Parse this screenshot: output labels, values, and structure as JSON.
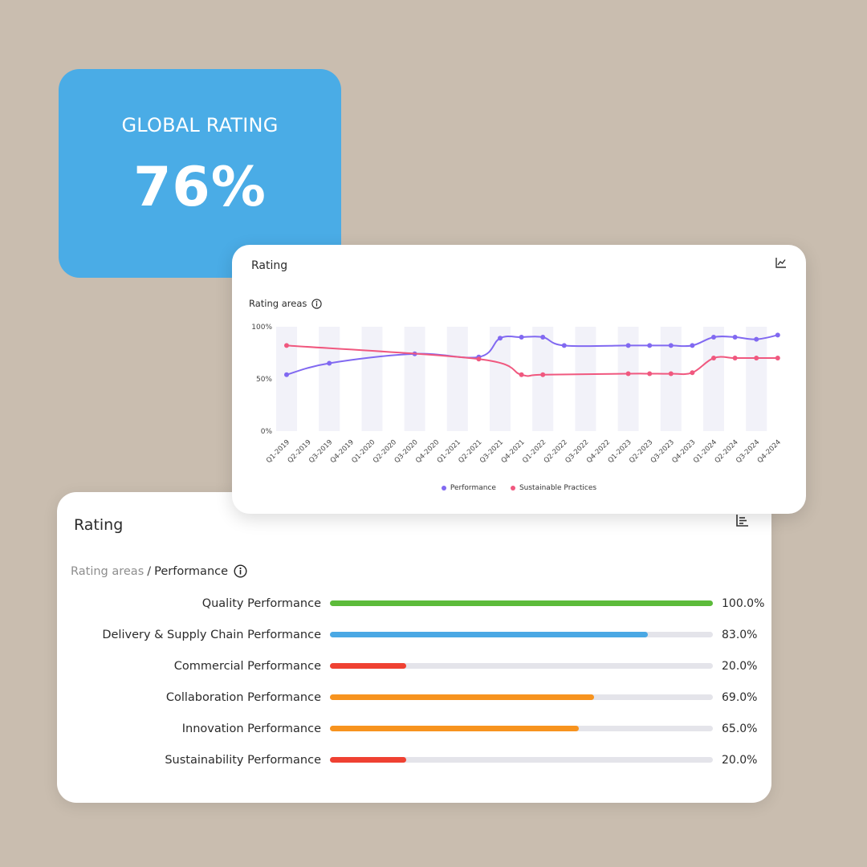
{
  "global": {
    "title": "GLOBAL RATING",
    "value": "76%"
  },
  "line_card": {
    "title": "Rating",
    "subtitle": "Rating areas",
    "tool_icon": "line-chart-icon",
    "info_icon": "info-icon"
  },
  "bars_card": {
    "title": "Rating",
    "tool_icon": "bar-list-icon",
    "breadcrumb": {
      "root": "Rating areas",
      "separator": "/",
      "leaf": "Performance"
    },
    "track_color": "#e4e4ea",
    "rows": [
      {
        "label": "Quality Performance",
        "value": 100.0,
        "display": "100.0%",
        "color": "#5cbb3a"
      },
      {
        "label": "Delivery & Supply Chain Performance",
        "value": 83.0,
        "display": "83.0%",
        "color": "#4aa8e4"
      },
      {
        "label": "Commercial Performance",
        "value": 20.0,
        "display": "20.0%",
        "color": "#ef4132"
      },
      {
        "label": "Collaboration Performance",
        "value": 69.0,
        "display": "69.0%",
        "color": "#f7931e"
      },
      {
        "label": "Innovation Performance",
        "value": 65.0,
        "display": "65.0%",
        "color": "#f7931e"
      },
      {
        "label": "Sustainability Performance",
        "value": 20.0,
        "display": "20.0%",
        "color": "#ef4132"
      }
    ]
  },
  "chart_data": {
    "type": "line",
    "title": "",
    "xlabel": "",
    "ylabel": "",
    "ylim": [
      0,
      100
    ],
    "yticks": [
      "0%",
      "50%",
      "100%"
    ],
    "ytick_values": [
      0,
      50,
      100
    ],
    "grid": "alternating vertical bands",
    "band_color": "#f2f2f9",
    "legend_position": "bottom-center",
    "x": [
      "Q1-2019",
      "Q2-2019",
      "Q3-2019",
      "Q4-2019",
      "Q1-2020",
      "Q2-2020",
      "Q3-2020",
      "Q4-2020",
      "Q1-2021",
      "Q2-2021",
      "Q3-2021",
      "Q4-2021",
      "Q1-2022",
      "Q2-2022",
      "Q3-2022",
      "Q4-2022",
      "Q1-2023",
      "Q2-2023",
      "Q3-2023",
      "Q4-2023",
      "Q1-2024",
      "Q2-2024",
      "Q3-2024",
      "Q4-2024"
    ],
    "series": [
      {
        "name": "Performance",
        "color": "#8169f1",
        "values": [
          54,
          null,
          65,
          null,
          null,
          null,
          74,
          null,
          null,
          71,
          89,
          90,
          90,
          82,
          null,
          null,
          82,
          82,
          82,
          82,
          90,
          90,
          88,
          92
        ]
      },
      {
        "name": "Sustainable Practices",
        "color": "#f0587f",
        "values": [
          82,
          null,
          null,
          null,
          null,
          null,
          null,
          null,
          null,
          69,
          null,
          54,
          54,
          null,
          null,
          null,
          55,
          55,
          55,
          56,
          70,
          70,
          70,
          70
        ]
      }
    ]
  }
}
